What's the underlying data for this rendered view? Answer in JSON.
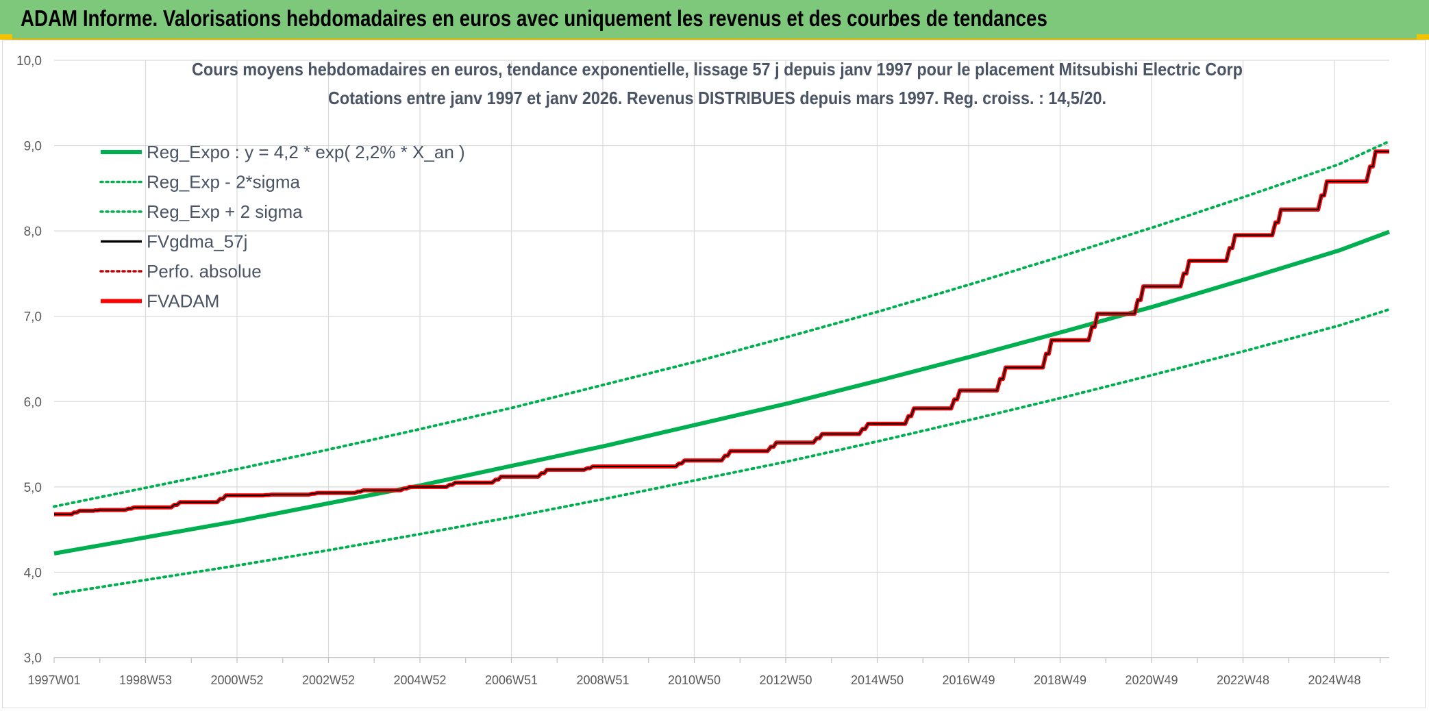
{
  "header": {
    "title": "ADAM Informe. Valorisations hebdomadaires en euros avec uniquement les revenus et des courbes de tendances"
  },
  "colors": {
    "header_bg": "#7dc87a",
    "trend": "#00b050",
    "fvgdma": "#000000",
    "fvadam": "#ff0000",
    "perfo": "#c00000"
  },
  "chart_data": {
    "type": "line",
    "title_lines": [
      "Cours moyens hebdomadaires en euros, tendance exponentielle, lissage 57 j depuis janv 1997 pour le placement Mitsubishi Electric Corp",
      "Cotations entre janv 1997 et janv 2026. Revenus DISTRIBUES depuis mars 1997. Reg. croiss. : 14,5/20."
    ],
    "x_tick_labels": [
      "1997W01",
      "1998W53",
      "2000W52",
      "2002W52",
      "2004W52",
      "2006W51",
      "2008W51",
      "2010W50",
      "2012W50",
      "2014W50",
      "2016W49",
      "2018W49",
      "2020W49",
      "2022W48",
      "2024W48"
    ],
    "x_range": [
      1997.0,
      2026.1
    ],
    "y_ticks": [
      "3,0",
      "4,0",
      "5,0",
      "6,0",
      "7,0",
      "8,0",
      "9,0",
      "10,0"
    ],
    "ylim": [
      3.0,
      10.0
    ],
    "grid": true,
    "legend_position": "top-left",
    "legend": [
      {
        "label": "Reg_Expo : y = 4,2 * exp( 2,2% *  X_an )",
        "color": "#00b050",
        "style": "solid-thick"
      },
      {
        "label": "Reg_Exp - 2*sigma",
        "color": "#00b050",
        "style": "dotted"
      },
      {
        "label": "Reg_Exp + 2 sigma",
        "color": "#00b050",
        "style": "dotted"
      },
      {
        "label": "FVgdma_57j",
        "color": "#000000",
        "style": "solid"
      },
      {
        "label": "Perfo. absolue",
        "color": "#c00000",
        "style": "dotted"
      },
      {
        "label": "FVADAM",
        "color": "#ff0000",
        "style": "solid-thick"
      }
    ],
    "series": [
      {
        "name": "Reg_Expo : y = 4,2 * exp( 2,2% *  X_an )",
        "x": [
          1997.0,
          1999.0,
          2001.0,
          2003.0,
          2005.0,
          2007.0,
          2009.0,
          2011.0,
          2013.0,
          2015.0,
          2017.0,
          2019.0,
          2021.0,
          2023.0,
          2025.0,
          2026.1
        ],
        "y": [
          4.22,
          4.41,
          4.6,
          4.81,
          5.02,
          5.25,
          5.48,
          5.73,
          5.98,
          6.25,
          6.53,
          6.82,
          7.12,
          7.44,
          7.77,
          7.99
        ]
      },
      {
        "name": "Reg_Exp - 2*sigma",
        "x": [
          1997.0,
          1999.0,
          2001.0,
          2003.0,
          2005.0,
          2007.0,
          2009.0,
          2011.0,
          2013.0,
          2015.0,
          2017.0,
          2019.0,
          2021.0,
          2023.0,
          2025.0,
          2026.1
        ],
        "y": [
          3.74,
          3.91,
          4.08,
          4.26,
          4.45,
          4.65,
          4.86,
          5.08,
          5.3,
          5.54,
          5.79,
          6.05,
          6.32,
          6.6,
          6.89,
          7.08
        ]
      },
      {
        "name": "Reg_Exp + 2 sigma",
        "x": [
          1997.0,
          1999.0,
          2001.0,
          2003.0,
          2005.0,
          2007.0,
          2009.0,
          2011.0,
          2013.0,
          2015.0,
          2017.0,
          2019.0,
          2021.0,
          2023.0,
          2025.0,
          2026.1
        ],
        "y": [
          4.77,
          4.99,
          5.21,
          5.44,
          5.68,
          5.93,
          6.2,
          6.47,
          6.76,
          7.06,
          7.38,
          7.71,
          8.05,
          8.41,
          8.78,
          9.05
        ]
      },
      {
        "name": "FVADAM",
        "x": [
          1997.0,
          1997.7,
          1998.0,
          1999.0,
          2000.0,
          2001.0,
          2002.0,
          2003.0,
          2004.0,
          2005.0,
          2006.0,
          2007.0,
          2008.0,
          2009.0,
          2010.0,
          2011.0,
          2012.0,
          2013.0,
          2014.0,
          2015.0,
          2016.0,
          2017.0,
          2018.0,
          2019.0,
          2020.0,
          2021.0,
          2022.0,
          2023.0,
          2024.0,
          2025.0,
          2026.1
        ],
        "y": [
          4.68,
          4.72,
          4.73,
          4.76,
          4.82,
          4.9,
          4.91,
          4.93,
          4.96,
          5.0,
          5.05,
          5.12,
          5.2,
          5.24,
          5.24,
          5.31,
          5.42,
          5.52,
          5.62,
          5.74,
          5.92,
          6.13,
          6.4,
          6.72,
          7.03,
          7.35,
          7.65,
          7.95,
          8.25,
          8.58,
          8.93
        ]
      },
      {
        "name": "FVgdma_57j",
        "x": [
          1997.0,
          1997.7,
          1998.0,
          1999.0,
          2000.0,
          2001.0,
          2002.0,
          2003.0,
          2004.0,
          2005.0,
          2006.0,
          2007.0,
          2008.0,
          2009.0,
          2010.0,
          2011.0,
          2012.0,
          2013.0,
          2014.0,
          2015.0,
          2016.0,
          2017.0,
          2018.0,
          2019.0,
          2020.0,
          2021.0,
          2022.0,
          2023.0,
          2024.0,
          2025.0,
          2026.1
        ],
        "y": [
          4.68,
          4.72,
          4.73,
          4.76,
          4.82,
          4.9,
          4.91,
          4.93,
          4.96,
          5.0,
          5.05,
          5.12,
          5.2,
          5.24,
          5.24,
          5.31,
          5.42,
          5.52,
          5.62,
          5.74,
          5.92,
          6.13,
          6.4,
          6.72,
          7.03,
          7.35,
          7.65,
          7.95,
          8.25,
          8.58,
          8.93
        ]
      }
    ]
  }
}
